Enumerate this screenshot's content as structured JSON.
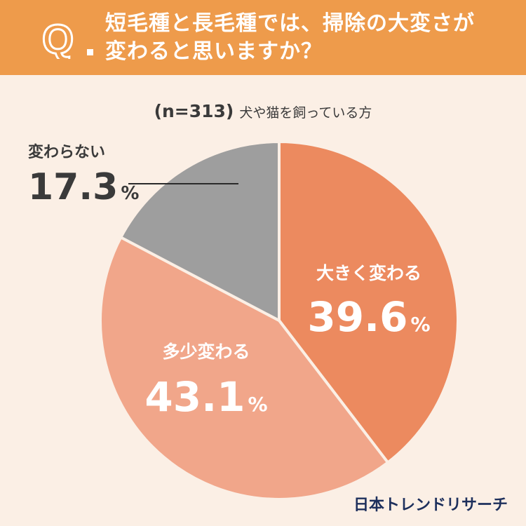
{
  "header": {
    "q_mark": "Q",
    "question_line1": "短毛種と長毛種では、掃除の大変さが",
    "question_line2": "変わると思いますか？"
  },
  "sample": {
    "n_label": "(n=313)",
    "population": "犬や猫を飼っている方"
  },
  "colors": {
    "header_bg": "#ee9b4b",
    "page_bg": "#fbefe5",
    "slice_1": "#ec8a5f",
    "slice_2": "#f1a68a",
    "slice_3": "#9e9e9e",
    "brand": "#1d2f5c"
  },
  "chart_data": {
    "type": "pie",
    "title": "短毛種と長毛種では、掃除の大変さが変わると思いますか？",
    "categories": [
      "大きく変わる",
      "多少変わる",
      "変わらない"
    ],
    "values": [
      39.6,
      43.1,
      17.3
    ],
    "unit": "%",
    "value_labels": [
      "39.6",
      "43.1",
      "17.3"
    ],
    "colors": [
      "#ec8a5f",
      "#f1a68a",
      "#9e9e9e"
    ],
    "start": "12 o'clock, clockwise"
  },
  "brand": {
    "name": "日本トレンドリサーチ"
  }
}
